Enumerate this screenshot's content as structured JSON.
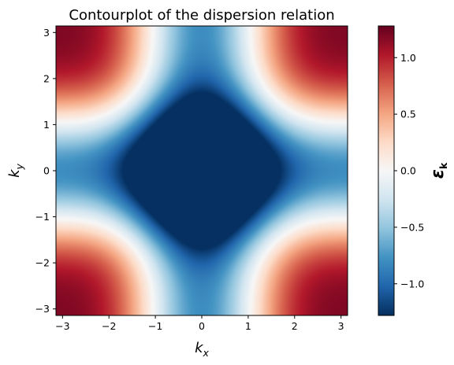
{
  "chart_data": {
    "type": "heatmap",
    "title": "Contourplot of the dispersion relation",
    "xlabel": {
      "main": "k",
      "sub": "x"
    },
    "ylabel": {
      "main": "k",
      "sub": "y"
    },
    "colorbar_label": {
      "main": "ε",
      "sub": "k"
    },
    "xlim": [
      -3.14159,
      3.14159
    ],
    "ylim": [
      -3.14159,
      3.14159
    ],
    "xticks": [
      -3,
      -2,
      -1,
      0,
      1,
      2,
      3
    ],
    "yticks": [
      -3,
      -2,
      -1,
      0,
      1,
      2,
      3
    ],
    "xtick_labels": [
      "−3",
      "−2",
      "−1",
      "0",
      "1",
      "2",
      "3"
    ],
    "ytick_labels": [
      "−3",
      "−2",
      "−1",
      "0",
      "1",
      "2",
      "3"
    ],
    "function": "-(cos(kx)+cos(ky)) - 0.4*(cos(kx)^2+cos(ky)^2)",
    "colormap": "RdBu_r",
    "colorbar_range": [
      -1.28,
      1.28
    ],
    "colorbar_ticks": [
      -1.0,
      -0.5,
      0.0,
      0.5,
      1.0
    ],
    "colorbar_tick_labels": [
      "−1.0",
      "−0.5",
      "0.0",
      "0.5",
      "1.0"
    ],
    "grid": false
  }
}
